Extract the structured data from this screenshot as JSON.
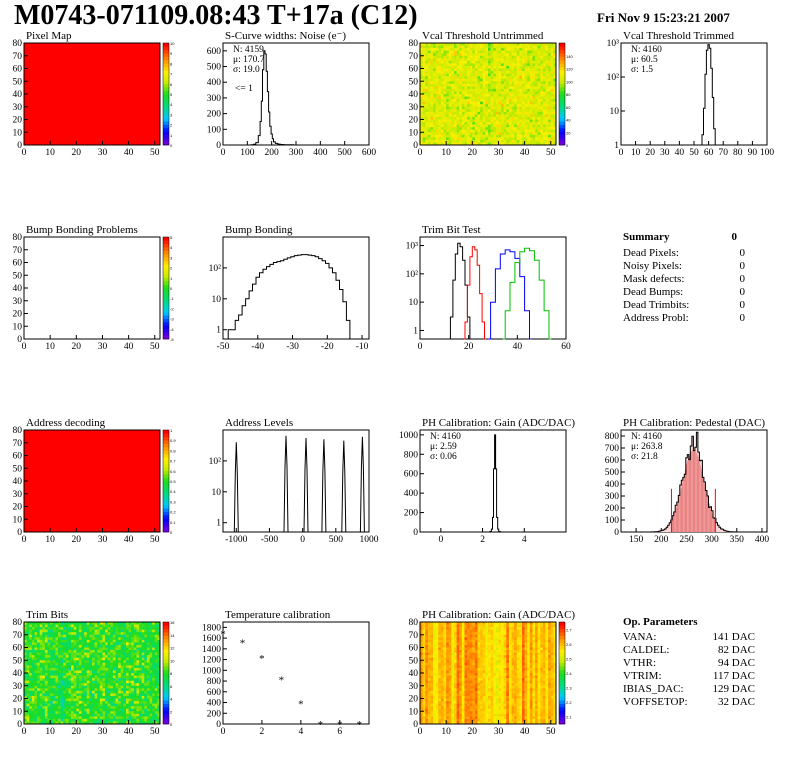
{
  "header": {
    "title": "M0743-071109.08:43 T+17a (C12)",
    "date": "Fri Nov  9 15:23:21 2007"
  },
  "chart_data": [
    {
      "type": "heatmap",
      "title": "Pixel Map",
      "xlim": [
        0,
        52
      ],
      "ylim": [
        0,
        80
      ],
      "xticks": [
        0,
        10,
        20,
        30,
        40,
        50
      ],
      "yticks": [
        0,
        10,
        20,
        30,
        40,
        50,
        60,
        70,
        80
      ],
      "zlim": [
        0,
        10
      ],
      "palette_ticks": [
        0,
        1,
        2,
        3,
        4,
        5,
        6,
        7,
        8,
        9,
        10
      ],
      "fill": "uniform-max",
      "value": 10
    },
    {
      "type": "line",
      "title": "S-Curve widths: Noise (e⁻)",
      "xlim": [
        0,
        600
      ],
      "ylim": [
        0,
        650
      ],
      "xticks": [
        0,
        100,
        200,
        300,
        400,
        500,
        600
      ],
      "yticks": [
        0,
        100,
        200,
        300,
        400,
        500,
        600
      ],
      "stats": [
        "N: 4159",
        "μ: 170.7",
        "σ: 19.0"
      ],
      "annotation": "<= 1",
      "x": [
        110,
        120,
        130,
        140,
        150,
        155,
        160,
        165,
        170,
        175,
        180,
        185,
        190,
        195,
        200,
        205,
        210,
        220,
        230,
        240,
        260,
        280,
        300
      ],
      "y": [
        0,
        2,
        5,
        15,
        60,
        150,
        280,
        480,
        600,
        580,
        470,
        340,
        210,
        120,
        70,
        40,
        20,
        10,
        6,
        3,
        2,
        1,
        0
      ]
    },
    {
      "type": "heatmap",
      "title": "Vcal Threshold Untrimmed",
      "xlim": [
        0,
        52
      ],
      "ylim": [
        0,
        80
      ],
      "xticks": [
        0,
        10,
        20,
        30,
        40,
        50
      ],
      "yticks": [
        0,
        10,
        20,
        30,
        40,
        50,
        60,
        70,
        80
      ],
      "zlim": [
        0,
        160
      ],
      "palette_ticks": [
        0,
        20,
        40,
        60,
        80,
        100,
        120,
        140
      ],
      "fill": "random",
      "mean": 105,
      "spread": 12
    },
    {
      "type": "line",
      "title": "Vcal Threshold Trimmed",
      "log_y": true,
      "xlim": [
        0,
        100
      ],
      "ylim": [
        1,
        1000
      ],
      "xticks": [
        0,
        10,
        20,
        30,
        40,
        50,
        60,
        70,
        80,
        90,
        100
      ],
      "yticks": [
        1,
        10,
        100,
        1000
      ],
      "ytick_labels": [
        "1",
        "10",
        "10²",
        "10³"
      ],
      "stats": [
        "N: 4160",
        "μ: 60.5",
        "σ:  1.5"
      ],
      "x": [
        55,
        56,
        57,
        58,
        59,
        60,
        61,
        62,
        63,
        64,
        65
      ],
      "y": [
        1,
        2,
        12,
        120,
        620,
        900,
        700,
        180,
        25,
        3,
        1
      ]
    },
    {
      "type": "heatmap",
      "title": "Bump Bonding Problems",
      "xlim": [
        0,
        52
      ],
      "ylim": [
        0,
        80
      ],
      "xticks": [
        0,
        10,
        20,
        30,
        40,
        50
      ],
      "yticks": [
        0,
        10,
        20,
        30,
        40,
        50,
        60,
        70,
        80
      ],
      "zlim": [
        -5,
        5
      ],
      "palette_ticks": [
        -5,
        -4,
        -3,
        -2,
        -1,
        0,
        1,
        2,
        3,
        4,
        5
      ],
      "fill": "empty"
    },
    {
      "type": "line",
      "title": "Bump Bonding",
      "log_y": true,
      "xlim": [
        -50,
        -8
      ],
      "ylim": [
        0.5,
        1000
      ],
      "xticks": [
        -50,
        -40,
        -30,
        -20,
        -10
      ],
      "yticks": [
        1,
        10,
        100
      ],
      "ytick_labels": [
        "1",
        "10",
        "10²"
      ],
      "x": [
        -49,
        -48,
        -47,
        -46,
        -45,
        -44,
        -43,
        -42,
        -41,
        -40,
        -39,
        -38,
        -37,
        -36,
        -35,
        -34,
        -33,
        -32,
        -31,
        -30,
        -29,
        -28,
        -27,
        -26,
        -25,
        -24,
        -23,
        -22,
        -21,
        -20,
        -19,
        -18,
        -17,
        -16,
        -15,
        -14,
        -13
      ],
      "y": [
        0.5,
        1,
        1,
        2,
        3,
        6,
        10,
        18,
        30,
        50,
        70,
        90,
        110,
        130,
        150,
        160,
        170,
        190,
        210,
        230,
        250,
        260,
        270,
        270,
        260,
        250,
        230,
        200,
        170,
        140,
        100,
        70,
        40,
        20,
        8,
        2,
        0.5
      ]
    },
    {
      "type": "line",
      "title": "Trim Bit Test",
      "log_y": true,
      "xlim": [
        0,
        60
      ],
      "ylim": [
        0.5,
        2000
      ],
      "xticks": [
        0,
        20,
        40,
        60
      ],
      "yticks": [
        1,
        10,
        100,
        1000
      ],
      "ytick_labels": [
        "1",
        "10",
        "10²",
        "10³"
      ],
      "series": [
        {
          "color": "#000000",
          "x": [
            12,
            13,
            14,
            15,
            16,
            17,
            18,
            19,
            20,
            21
          ],
          "y": [
            0.5,
            3,
            60,
            500,
            1200,
            900,
            300,
            40,
            3,
            0.5
          ]
        },
        {
          "color": "#ff0000",
          "x": [
            18,
            19,
            20,
            21,
            22,
            23,
            24,
            25,
            26,
            27
          ],
          "y": [
            0.5,
            2,
            40,
            400,
            900,
            700,
            200,
            20,
            2,
            0.5
          ]
        },
        {
          "color": "#0000ff",
          "x": [
            28,
            30,
            32,
            34,
            36,
            38,
            40,
            42,
            44,
            46
          ],
          "y": [
            0.5,
            10,
            150,
            500,
            700,
            600,
            350,
            80,
            5,
            0.5
          ]
        },
        {
          "color": "#00c000",
          "x": [
            34,
            36,
            38,
            40,
            42,
            44,
            46,
            48,
            50,
            52,
            54
          ],
          "y": [
            0.5,
            5,
            50,
            250,
            600,
            800,
            650,
            300,
            60,
            5,
            0.5
          ]
        }
      ]
    },
    {
      "type": "table",
      "title": "Summary",
      "total": "0",
      "rows": [
        [
          "Dead Pixels:",
          "0"
        ],
        [
          "Noisy Pixels:",
          "0"
        ],
        [
          "Mask defects:",
          "0"
        ],
        [
          "Dead Bumps:",
          "0"
        ],
        [
          "Dead Trimbits:",
          "0"
        ],
        [
          "Address Probl:",
          "0"
        ]
      ]
    },
    {
      "type": "heatmap",
      "title": "Address decoding",
      "xlim": [
        0,
        52
      ],
      "ylim": [
        0,
        80
      ],
      "xticks": [
        0,
        10,
        20,
        30,
        40,
        50
      ],
      "yticks": [
        0,
        10,
        20,
        30,
        40,
        50,
        60,
        70,
        80
      ],
      "zlim": [
        0,
        1
      ],
      "palette_ticks": [
        0,
        0.1,
        0.2,
        0.3,
        0.4,
        0.5,
        0.6,
        0.7,
        0.8,
        0.9,
        1
      ],
      "fill": "uniform-max",
      "value": 1
    },
    {
      "type": "line",
      "title": "Address Levels",
      "log_y": true,
      "xlim": [
        -1200,
        1000
      ],
      "ylim": [
        0.5,
        1000
      ],
      "xticks": [
        -1000,
        -500,
        0,
        500,
        1000
      ],
      "yticks": [
        1,
        10,
        100
      ],
      "ytick_labels": [
        "1",
        "10",
        "10²"
      ],
      "peaks": [
        {
          "x": -1000,
          "y": 400
        },
        {
          "x": -250,
          "y": 650
        },
        {
          "x": 50,
          "y": 550
        },
        {
          "x": 320,
          "y": 500
        },
        {
          "x": 620,
          "y": 450
        },
        {
          "x": 900,
          "y": 600
        }
      ]
    },
    {
      "type": "line",
      "title": "PH Calibration: Gain (ADC/DAC)",
      "xlim": [
        -1,
        6
      ],
      "ylim": [
        0,
        1050
      ],
      "xticks": [
        0,
        2,
        4
      ],
      "yticks": [
        0,
        200,
        400,
        600,
        800,
        1000
      ],
      "stats": [
        "N: 4160",
        "μ: 2.59",
        "σ: 0.06"
      ],
      "x": [
        2.3,
        2.4,
        2.45,
        2.5,
        2.55,
        2.6,
        2.65,
        2.7,
        2.75,
        2.8,
        2.9
      ],
      "y": [
        0,
        5,
        30,
        150,
        650,
        1000,
        650,
        150,
        30,
        5,
        0
      ]
    },
    {
      "type": "line",
      "title": "PH Calibration: Pedestal (DAC)",
      "xlim": [
        120,
        410
      ],
      "ylim": [
        0,
        850
      ],
      "xticks": [
        150,
        200,
        250,
        300,
        350,
        400
      ],
      "yticks": [
        0,
        100,
        200,
        300,
        400,
        500,
        600,
        700,
        800
      ],
      "stats": [
        "N: 4160",
        "μ: 263.8",
        "σ: 21.8"
      ],
      "stat_colors": [
        "#000000",
        "#ff0000",
        "#ff0000"
      ],
      "mean": 263.8,
      "sigma": 21.8,
      "peak": 720
    },
    {
      "type": "heatmap",
      "title": "Trim Bits",
      "xlim": [
        0,
        52
      ],
      "ylim": [
        0,
        80
      ],
      "xticks": [
        0,
        10,
        20,
        30,
        40,
        50
      ],
      "yticks": [
        0,
        10,
        20,
        30,
        40,
        50,
        60,
        70,
        80
      ],
      "zlim": [
        0,
        16
      ],
      "palette_ticks": [
        0,
        2,
        4,
        6,
        8,
        10,
        12,
        14,
        16
      ],
      "fill": "random",
      "mean": 8,
      "spread": 1.8
    },
    {
      "type": "scatter",
      "title": "Temperature calibration",
      "xlim": [
        0,
        7.5
      ],
      "ylim": [
        0,
        1900
      ],
      "xticks": [
        0,
        2,
        4,
        6
      ],
      "yticks": [
        0,
        200,
        400,
        600,
        800,
        1000,
        1200,
        1400,
        1600,
        1800
      ],
      "x": [
        0,
        1,
        2,
        3,
        4,
        5,
        6,
        7
      ],
      "y": [
        1720,
        1560,
        1270,
        870,
        420,
        40,
        40,
        40
      ]
    },
    {
      "type": "heatmap",
      "title": "PH Calibration: Gain (ADC/DAC)",
      "xlim": [
        0,
        52
      ],
      "ylim": [
        0,
        80
      ],
      "xticks": [
        0,
        10,
        20,
        30,
        40,
        50
      ],
      "yticks": [
        0,
        10,
        20,
        30,
        40,
        50,
        60,
        70,
        80
      ],
      "zlim": [
        2.05,
        2.75
      ],
      "palette_ticks": [
        2.1,
        2.2,
        2.3,
        2.4,
        2.5,
        2.6,
        2.7
      ],
      "fill": "columns",
      "mean": 2.6,
      "spread": 0.05
    },
    {
      "type": "table",
      "title": "Op. Parameters",
      "rows": [
        [
          "VANA:",
          "141 DAC"
        ],
        [
          "CALDEL:",
          "82 DAC"
        ],
        [
          "VTHR:",
          "94 DAC"
        ],
        [
          "VTRIM:",
          "117 DAC"
        ],
        [
          "IBIAS_DAC:",
          "129 DAC"
        ],
        [
          "VOFFSETOP:",
          "32 DAC"
        ]
      ]
    }
  ]
}
